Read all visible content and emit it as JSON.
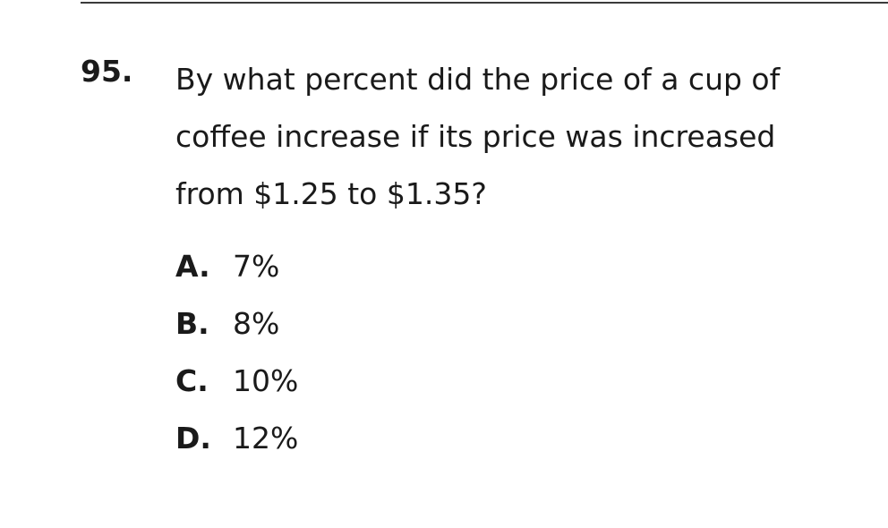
{
  "question": {
    "number": "95.",
    "lines": [
      "By what percent did the price of a cup of",
      "coffee increase if its price was increased",
      "from $1.25 to $1.35?"
    ]
  },
  "choices": [
    {
      "letter": "A.",
      "value": "7%"
    },
    {
      "letter": "B.",
      "value": "8%"
    },
    {
      "letter": "C.",
      "value": "10%"
    },
    {
      "letter": "D.",
      "value": "12%"
    }
  ]
}
